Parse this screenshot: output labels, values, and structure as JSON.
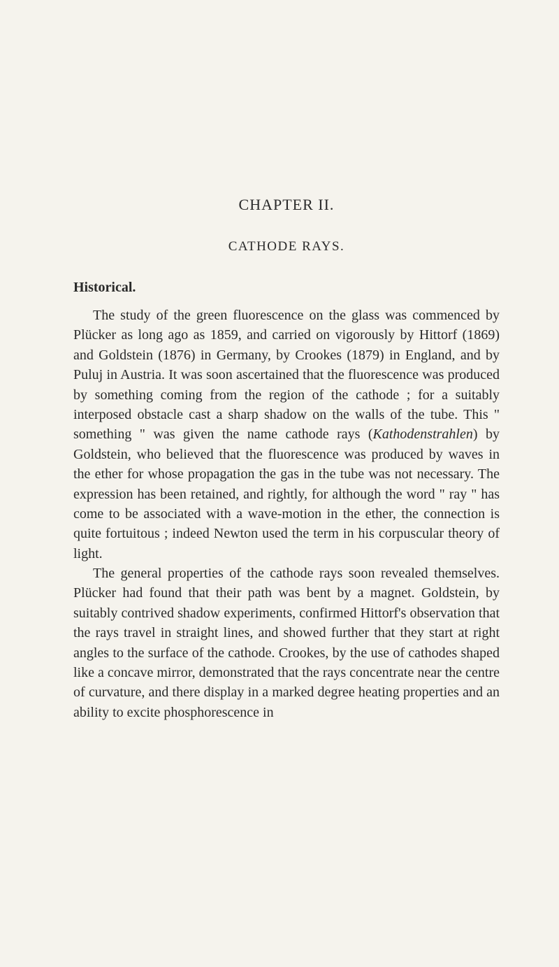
{
  "chapter": {
    "title": "CHAPTER II.",
    "subtitle": "CATHODE RAYS."
  },
  "section": {
    "heading": "Historical."
  },
  "paragraphs": {
    "p1_part1": "The study of the green fluorescence on the glass was commenced by Plücker as long ago as 1859, and carried on vigorously by Hittorf (1869) and Goldstein (1876) in Germany, by Crookes (1879) in England, and by Puluj in Austria. It was soon ascertained that the fluorescence was produced by something coming from the region of the cathode ; for a suitably interposed obstacle cast a sharp shadow on the walls of the tube. This \" something \" was given the name cathode rays (",
    "p1_italic": "Kathodenstrahlen",
    "p1_part2": ") by Goldstein, who believed that the fluorescence was produced by waves in the ether for whose propagation the gas in the tube was not necessary. The expression has been retained, and rightly, for although the word \" ray \" has come to be associated with a wave-motion in the ether, the connection is quite fortuitous ; indeed Newton used the term in his corpuscular theory of light.",
    "p2": "The general properties of the cathode rays soon revealed themselves. Plücker had found that their path was bent by a magnet. Goldstein, by suitably contrived shadow experiments, confirmed Hittorf's observation that the rays travel in straight lines, and showed further that they start at right angles to the surface of the cathode. Crookes, by the use of cathodes shaped like a concave mirror, demonstrated that the rays concentrate near the centre of curvature, and there display in a marked degree heating properties and an ability to excite phosphorescence in"
  },
  "styling": {
    "background_color": "#f5f3ed",
    "text_color": "#2a2a2a",
    "body_fontsize": 20,
    "title_fontsize": 22,
    "subtitle_fontsize": 19,
    "heading_fontsize": 20,
    "line_height": 1.42,
    "font_family": "Times New Roman"
  }
}
